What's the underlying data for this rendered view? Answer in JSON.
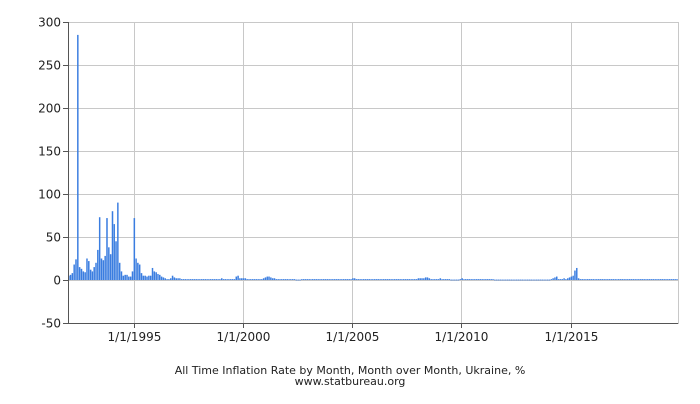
{
  "chart_data": {
    "type": "bar",
    "title": "All Time Inflation Rate by Month, Month over Month, Ukraine, %",
    "source": "www.statbureau.org",
    "xlabel": "",
    "ylabel": "",
    "ylim": [
      -50,
      300
    ],
    "xlim": [
      "1992-01-01",
      "2019-11-30"
    ],
    "yticks": [
      -50,
      0,
      50,
      100,
      150,
      200,
      250,
      300
    ],
    "xticks": [
      {
        "date": "1995-01-01",
        "label": "1/1/1995"
      },
      {
        "date": "2000-01-01",
        "label": "1/1/2000"
      },
      {
        "date": "2005-01-01",
        "label": "1/1/2005"
      },
      {
        "date": "2010-01-01",
        "label": "1/1/2010"
      },
      {
        "date": "2015-01-01",
        "label": "1/1/2015"
      }
    ],
    "grid": true,
    "legend": "none",
    "bar_color": "#3a7de0",
    "series": [
      {
        "start": "1992-01",
        "values": [
          5,
          6,
          8,
          18,
          24,
          285,
          15,
          13,
          10,
          9,
          25,
          22,
          12,
          10,
          15,
          20,
          35,
          73,
          25,
          23,
          28,
          72,
          38,
          30,
          80,
          65,
          45,
          90,
          20,
          10,
          5,
          6,
          6,
          4,
          4,
          10,
          72,
          25,
          20,
          18,
          8,
          5,
          5,
          4,
          5,
          5,
          14,
          10,
          9,
          7,
          6,
          4,
          3,
          2,
          1,
          1,
          2,
          5,
          3,
          2,
          2,
          2,
          1,
          1,
          1,
          1,
          1,
          1,
          1,
          1,
          1,
          1,
          1,
          1,
          1,
          1,
          1,
          1,
          1,
          1,
          1,
          1,
          1,
          1,
          2,
          1,
          1,
          1,
          1,
          1,
          1,
          1,
          4,
          5,
          2,
          2,
          2,
          2,
          1,
          1,
          1,
          1,
          1,
          1,
          1,
          1,
          1,
          2,
          3,
          4,
          4,
          3,
          2,
          2,
          1,
          1,
          1,
          1,
          1,
          1,
          1,
          1,
          1,
          1,
          1,
          0.5,
          0.5,
          0.5,
          1,
          1,
          1,
          1,
          1,
          1,
          1,
          1,
          1,
          1,
          1,
          1,
          1,
          1,
          1,
          1,
          1,
          1,
          1,
          1,
          1,
          1,
          1,
          1,
          1,
          1,
          1,
          1,
          2,
          2,
          1,
          1,
          1,
          1,
          1,
          1,
          1,
          1,
          1,
          1,
          1,
          1,
          1,
          1,
          1,
          1,
          1,
          1,
          1,
          1,
          1,
          1,
          1,
          1,
          1,
          1,
          1,
          1,
          1,
          1,
          1,
          1,
          1,
          1,
          2,
          2,
          2,
          2,
          3,
          3,
          2,
          1,
          1,
          1,
          1,
          1,
          2,
          1,
          1,
          1,
          1,
          1,
          0.5,
          0.5,
          0.5,
          0.5,
          0.5,
          1,
          2,
          1,
          1,
          1,
          1,
          1,
          1,
          1,
          1,
          1,
          1,
          1,
          1,
          1,
          1,
          1,
          1,
          1,
          0.5,
          0.5,
          0.5,
          0.5,
          0.5,
          0.5,
          0.5,
          0.5,
          0.5,
          0.5,
          0.5,
          0.5,
          0.5,
          0.5,
          0.5,
          0.5,
          0.5,
          0.5,
          0.5,
          0.5,
          0.5,
          0.5,
          0.5,
          0.5,
          0.5,
          0.5,
          0.5,
          0.5,
          0.5,
          0.5,
          0.5,
          1,
          2,
          3,
          4,
          1,
          1,
          1,
          2,
          1,
          2,
          3,
          4,
          5,
          11,
          14,
          2,
          1,
          1,
          1,
          1,
          1,
          1,
          1,
          1,
          1,
          1,
          1,
          1,
          1,
          1,
          1,
          1,
          1,
          1,
          1,
          1,
          1,
          1,
          1,
          1,
          1,
          1,
          1,
          1,
          1,
          1,
          1,
          1,
          1,
          1,
          1,
          1,
          1,
          1,
          1,
          1,
          1,
          1,
          1,
          1,
          1,
          1,
          1,
          1,
          1,
          1,
          1,
          1,
          1,
          1
        ]
      }
    ]
  }
}
